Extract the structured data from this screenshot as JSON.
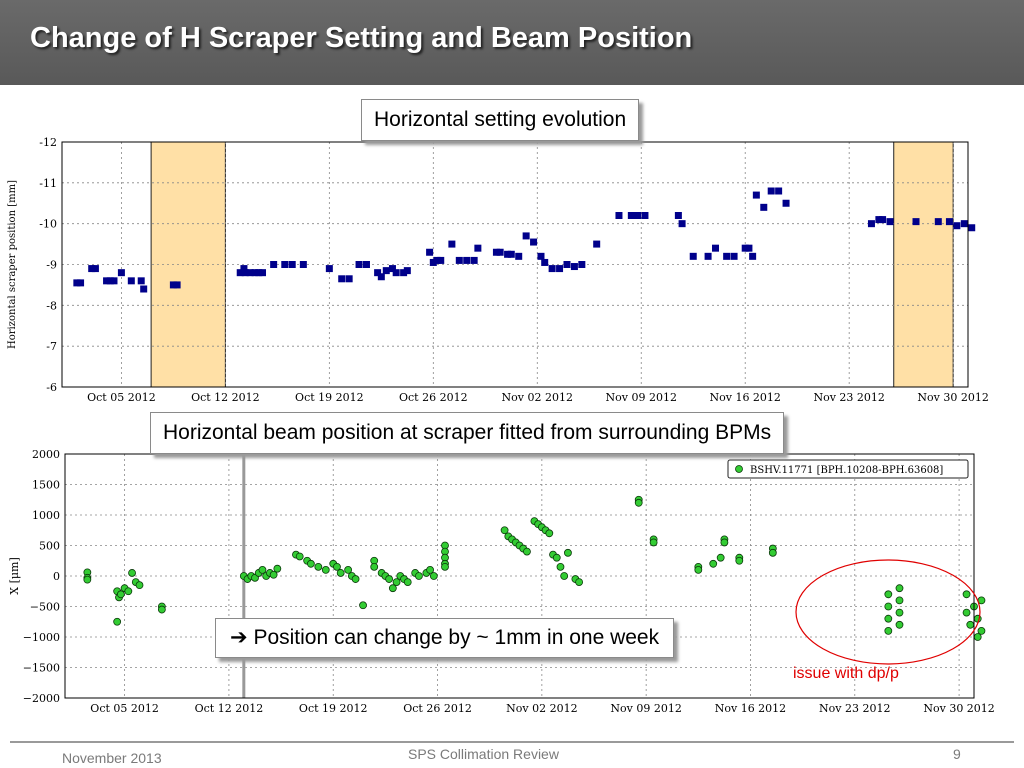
{
  "slide": {
    "title": "Change of H Scraper Setting and Beam Position",
    "callout_top": "Horizontal setting evolution",
    "callout_middle": "Horizontal beam position at scraper fitted from surrounding BPMs",
    "callout_bottom_arrow": "➔",
    "callout_bottom": "Position can change by ~ 1mm in one week",
    "issue_label": "issue with dp/p",
    "footer": {
      "date": "November 2013",
      "center": "SPS Collimation Review",
      "page": "9"
    }
  },
  "colors": {
    "scraper_marker": "#00008b",
    "bpm_marker": "#33cc33",
    "highlight_band": "#ffe0a6",
    "issue_ellipse": "#e00000",
    "vertical_line": "#999999"
  },
  "chart_data": [
    {
      "type": "scatter",
      "ylabel": "Horizontal scraper position [mm]",
      "ylim": [
        -12,
        -6
      ],
      "y_inverted": true,
      "xlim": [
        "2012-10-01",
        "2012-12-01"
      ],
      "yticks": [
        "-12",
        "-11",
        "-10",
        "-9",
        "-8",
        "-7",
        "-6"
      ],
      "xticks": [
        {
          "date": "2012-10-05",
          "label": "Oct 05 2012"
        },
        {
          "date": "2012-10-12",
          "label": "Oct 12 2012"
        },
        {
          "date": "2012-10-19",
          "label": "Oct 19 2012"
        },
        {
          "date": "2012-10-26",
          "label": "Oct 26 2012"
        },
        {
          "date": "2012-11-02",
          "label": "Nov 02 2012"
        },
        {
          "date": "2012-11-09",
          "label": "Nov 09 2012"
        },
        {
          "date": "2012-11-16",
          "label": "Nov 16 2012"
        },
        {
          "date": "2012-11-23",
          "label": "Nov 23 2012"
        },
        {
          "date": "2012-11-30",
          "label": "Nov 30 2012"
        }
      ],
      "grid": true,
      "highlight_bands": [
        [
          "2012-10-07",
          "2012-10-12"
        ],
        [
          "2012-11-26",
          "2012-11-30"
        ]
      ],
      "series": [
        {
          "marker": "square",
          "points": [
            [
              "2012-10-02 00:00",
              -8.55
            ],
            [
              "2012-10-02 06:00",
              -8.55
            ],
            [
              "2012-10-03 00:00",
              -8.9
            ],
            [
              "2012-10-03 06:00",
              -8.9
            ],
            [
              "2012-10-04 00:00",
              -8.6
            ],
            [
              "2012-10-04 06:00",
              -8.6
            ],
            [
              "2012-10-04 12:00",
              -8.6
            ],
            [
              "2012-10-05 00:00",
              -8.8
            ],
            [
              "2012-10-05 16:00",
              -8.6
            ],
            [
              "2012-10-06 08:00",
              -8.6
            ],
            [
              "2012-10-06 12:00",
              -8.4
            ],
            [
              "2012-10-08 12:00",
              -8.5
            ],
            [
              "2012-10-08 18:00",
              -8.5
            ],
            [
              "2012-10-13 00:00",
              -8.8
            ],
            [
              "2012-10-13 06:00",
              -8.9
            ],
            [
              "2012-10-13 08:00",
              -8.8
            ],
            [
              "2012-10-13 16:00",
              -8.8
            ],
            [
              "2012-10-14 00:00",
              -8.8
            ],
            [
              "2012-10-14 06:00",
              -8.8
            ],
            [
              "2012-10-14 12:00",
              -8.8
            ],
            [
              "2012-10-15 06:00",
              -9.0
            ],
            [
              "2012-10-16 00:00",
              -9.0
            ],
            [
              "2012-10-16 12:00",
              -9.0
            ],
            [
              "2012-10-17 06:00",
              -9.0
            ],
            [
              "2012-10-19 00:00",
              -8.9
            ],
            [
              "2012-10-19 20:00",
              -8.65
            ],
            [
              "2012-10-20 08:00",
              -8.65
            ],
            [
              "2012-10-21 00:00",
              -9.0
            ],
            [
              "2012-10-21 12:00",
              -9.0
            ],
            [
              "2012-10-22 06:00",
              -8.8
            ],
            [
              "2012-10-22 12:00",
              -8.7
            ],
            [
              "2012-10-22 20:00",
              -8.85
            ],
            [
              "2012-10-23 06:00",
              -8.9
            ],
            [
              "2012-10-23 12:00",
              -8.8
            ],
            [
              "2012-10-24 00:00",
              -8.8
            ],
            [
              "2012-10-24 06:00",
              -8.85
            ],
            [
              "2012-10-25 18:00",
              -9.3
            ],
            [
              "2012-10-26 00:00",
              -9.05
            ],
            [
              "2012-10-26 06:00",
              -9.1
            ],
            [
              "2012-10-26 12:00",
              -9.1
            ],
            [
              "2012-10-27 06:00",
              -9.5
            ],
            [
              "2012-10-27 18:00",
              -9.1
            ],
            [
              "2012-10-28 06:00",
              -9.1
            ],
            [
              "2012-10-28 18:00",
              -9.1
            ],
            [
              "2012-10-29 00:00",
              -9.4
            ],
            [
              "2012-10-30 06:00",
              -9.3
            ],
            [
              "2012-10-30 12:00",
              -9.3
            ],
            [
              "2012-10-31 00:00",
              -9.25
            ],
            [
              "2012-10-31 06:00",
              -9.25
            ],
            [
              "2012-10-31 18:00",
              -9.2
            ],
            [
              "2012-11-01 06:00",
              -9.7
            ],
            [
              "2012-11-01 18:00",
              -9.55
            ],
            [
              "2012-11-02 06:00",
              -9.2
            ],
            [
              "2012-11-02 12:00",
              -9.05
            ],
            [
              "2012-11-03 00:00",
              -8.9
            ],
            [
              "2012-11-03 12:00",
              -8.9
            ],
            [
              "2012-11-04 00:00",
              -9.0
            ],
            [
              "2012-11-04 12:00",
              -8.95
            ],
            [
              "2012-11-05 00:00",
              -9.0
            ],
            [
              "2012-11-06 00:00",
              -9.5
            ],
            [
              "2012-11-07 12:00",
              -10.2
            ],
            [
              "2012-11-08 08:00",
              -10.2
            ],
            [
              "2012-11-08 18:00",
              -10.2
            ],
            [
              "2012-11-09 06:00",
              -10.2
            ],
            [
              "2012-11-11 12:00",
              -10.2
            ],
            [
              "2012-11-11 18:00",
              -10.0
            ],
            [
              "2012-11-12 12:00",
              -9.2
            ],
            [
              "2012-11-13 12:00",
              -9.2
            ],
            [
              "2012-11-14 00:00",
              -9.4
            ],
            [
              "2012-11-14 18:00",
              -9.2
            ],
            [
              "2012-11-15 06:00",
              -9.2
            ],
            [
              "2012-11-16 00:00",
              -9.4
            ],
            [
              "2012-11-16 06:00",
              -9.4
            ],
            [
              "2012-11-16 12:00",
              -9.2
            ],
            [
              "2012-11-16 18:00",
              -10.7
            ],
            [
              "2012-11-17 06:00",
              -10.4
            ],
            [
              "2012-11-17 18:00",
              -10.8
            ],
            [
              "2012-11-18 06:00",
              -10.8
            ],
            [
              "2012-11-18 18:00",
              -10.5
            ],
            [
              "2012-11-24 12:00",
              -10.0
            ],
            [
              "2012-11-25 00:00",
              -10.1
            ],
            [
              "2012-11-25 06:00",
              -10.1
            ],
            [
              "2012-11-25 18:00",
              -10.05
            ],
            [
              "2012-11-27 12:00",
              -10.05
            ],
            [
              "2012-11-29 00:00",
              -10.05
            ],
            [
              "2012-11-29 18:00",
              -10.05
            ],
            [
              "2012-11-30 06:00",
              -9.95
            ],
            [
              "2012-11-30 18:00",
              -10.0
            ],
            [
              "2012-12-01 06:00",
              -9.9
            ]
          ]
        }
      ]
    },
    {
      "type": "scatter",
      "ylabel": "X [μm]",
      "ylim": [
        -2000,
        2000
      ],
      "xlim": [
        "2012-10-01",
        "2012-12-01"
      ],
      "yticks": [
        "2000",
        "1500",
        "1000",
        "500",
        "0",
        "−500",
        "−1000",
        "−1500",
        "−2000"
      ],
      "xticks": [
        {
          "date": "2012-10-05",
          "label": "Oct 05 2012"
        },
        {
          "date": "2012-10-12",
          "label": "Oct 12 2012"
        },
        {
          "date": "2012-10-19",
          "label": "Oct 19 2012"
        },
        {
          "date": "2012-10-26",
          "label": "Oct 26 2012"
        },
        {
          "date": "2012-11-02",
          "label": "Nov 02 2012"
        },
        {
          "date": "2012-11-09",
          "label": "Nov 09 2012"
        },
        {
          "date": "2012-11-16",
          "label": "Nov 16 2012"
        },
        {
          "date": "2012-11-23",
          "label": "Nov 23 2012"
        },
        {
          "date": "2012-11-30",
          "label": "Nov 30 2012"
        }
      ],
      "grid": true,
      "legend_position": "top-right",
      "vertical_line": "2012-10-13",
      "series": [
        {
          "name": "BSHV.11771 [BPH.10208-BPH.63608]",
          "marker": "circle",
          "points": [
            [
              "2012-10-02 12:00",
              60
            ],
            [
              "2012-10-02 12:00",
              -30
            ],
            [
              "2012-10-02 12:00",
              -60
            ],
            [
              "2012-10-04 12:00",
              -250
            ],
            [
              "2012-10-04 15:00",
              -350
            ],
            [
              "2012-10-04 18:00",
              -300
            ],
            [
              "2012-10-05 00:00",
              -200
            ],
            [
              "2012-10-04 12:00",
              -750
            ],
            [
              "2012-10-05 06:00",
              -250
            ],
            [
              "2012-10-05 12:00",
              50
            ],
            [
              "2012-10-05 18:00",
              -100
            ],
            [
              "2012-10-06 00:00",
              -150
            ],
            [
              "2012-10-07 12:00",
              -500
            ],
            [
              "2012-10-07 12:00",
              -550
            ],
            [
              "2012-10-13 00:00",
              0
            ],
            [
              "2012-10-13 06:00",
              -50
            ],
            [
              "2012-10-13 12:00",
              0
            ],
            [
              "2012-10-13 18:00",
              -30
            ],
            [
              "2012-10-14 00:00",
              50
            ],
            [
              "2012-10-14 06:00",
              100
            ],
            [
              "2012-10-14 12:00",
              0
            ],
            [
              "2012-10-14 18:00",
              50
            ],
            [
              "2012-10-15 00:00",
              20
            ],
            [
              "2012-10-15 06:00",
              120
            ],
            [
              "2012-10-16 12:00",
              350
            ],
            [
              "2012-10-16 18:00",
              320
            ],
            [
              "2012-10-17 06:00",
              250
            ],
            [
              "2012-10-17 12:00",
              200
            ],
            [
              "2012-10-18 00:00",
              150
            ],
            [
              "2012-10-18 12:00",
              100
            ],
            [
              "2012-10-19 00:00",
              200
            ],
            [
              "2012-10-19 06:00",
              150
            ],
            [
              "2012-10-19 12:00",
              50
            ],
            [
              "2012-10-20 00:00",
              100
            ],
            [
              "2012-10-20 06:00",
              0
            ],
            [
              "2012-10-20 12:00",
              -50
            ],
            [
              "2012-10-21 00:00",
              -480
            ],
            [
              "2012-10-21 18:00",
              250
            ],
            [
              "2012-10-21 18:00",
              150
            ],
            [
              "2012-10-22 06:00",
              50
            ],
            [
              "2012-10-22 12:00",
              0
            ],
            [
              "2012-10-22 18:00",
              -50
            ],
            [
              "2012-10-23 00:00",
              -200
            ],
            [
              "2012-10-23 06:00",
              -100
            ],
            [
              "2012-10-23 12:00",
              0
            ],
            [
              "2012-10-23 18:00",
              -50
            ],
            [
              "2012-10-24 00:00",
              -100
            ],
            [
              "2012-10-24 12:00",
              50
            ],
            [
              "2012-10-24 18:00",
              0
            ],
            [
              "2012-10-25 06:00",
              50
            ],
            [
              "2012-10-25 12:00",
              100
            ],
            [
              "2012-10-25 18:00",
              0
            ],
            [
              "2012-10-26 12:00",
              500
            ],
            [
              "2012-10-26 12:00",
              400
            ],
            [
              "2012-10-26 12:00",
              300
            ],
            [
              "2012-10-26 12:00",
              200
            ],
            [
              "2012-10-26 12:00",
              150
            ],
            [
              "2012-10-30 12:00",
              750
            ],
            [
              "2012-10-30 18:00",
              650
            ],
            [
              "2012-10-31 00:00",
              600
            ],
            [
              "2012-10-31 06:00",
              550
            ],
            [
              "2012-10-31 12:00",
              500
            ],
            [
              "2012-10-31 18:00",
              450
            ],
            [
              "2012-11-01 00:00",
              400
            ],
            [
              "2012-11-01 12:00",
              900
            ],
            [
              "2012-11-01 18:00",
              850
            ],
            [
              "2012-11-02 00:00",
              800
            ],
            [
              "2012-11-02 06:00",
              750
            ],
            [
              "2012-11-02 12:00",
              700
            ],
            [
              "2012-11-02 18:00",
              350
            ],
            [
              "2012-11-03 00:00",
              300
            ],
            [
              "2012-11-03 06:00",
              150
            ],
            [
              "2012-11-03 12:00",
              0
            ],
            [
              "2012-11-03 18:00",
              380
            ],
            [
              "2012-11-04 06:00",
              -50
            ],
            [
              "2012-11-04 12:00",
              -100
            ],
            [
              "2012-11-08 12:00",
              1250
            ],
            [
              "2012-11-08 12:00",
              1200
            ],
            [
              "2012-11-09 12:00",
              600
            ],
            [
              "2012-11-09 12:00",
              550
            ],
            [
              "2012-11-12 12:00",
              150
            ],
            [
              "2012-11-12 12:00",
              100
            ],
            [
              "2012-11-13 12:00",
              200
            ],
            [
              "2012-11-14 00:00",
              300
            ],
            [
              "2012-11-14 06:00",
              600
            ],
            [
              "2012-11-14 06:00",
              550
            ],
            [
              "2012-11-15 06:00",
              300
            ],
            [
              "2012-11-15 06:00",
              250
            ],
            [
              "2012-11-17 12:00",
              450
            ],
            [
              "2012-11-17 12:00",
              380
            ],
            [
              "2012-11-25 06:00",
              -300
            ],
            [
              "2012-11-25 06:00",
              -500
            ],
            [
              "2012-11-25 06:00",
              -700
            ],
            [
              "2012-11-25 06:00",
              -900
            ],
            [
              "2012-11-26 00:00",
              -200
            ],
            [
              "2012-11-26 00:00",
              -400
            ],
            [
              "2012-11-26 00:00",
              -600
            ],
            [
              "2012-11-26 00:00",
              -800
            ],
            [
              "2012-11-30 12:00",
              -300
            ],
            [
              "2012-11-30 12:00",
              -600
            ],
            [
              "2012-11-30 18:00",
              -800
            ],
            [
              "2012-12-01 00:00",
              -500
            ],
            [
              "2012-12-01 06:00",
              -1000
            ],
            [
              "2012-12-01 06:00",
              -700
            ],
            [
              "2012-12-01 12:00",
              -400
            ],
            [
              "2012-12-01 12:00",
              -900
            ]
          ]
        }
      ]
    }
  ]
}
